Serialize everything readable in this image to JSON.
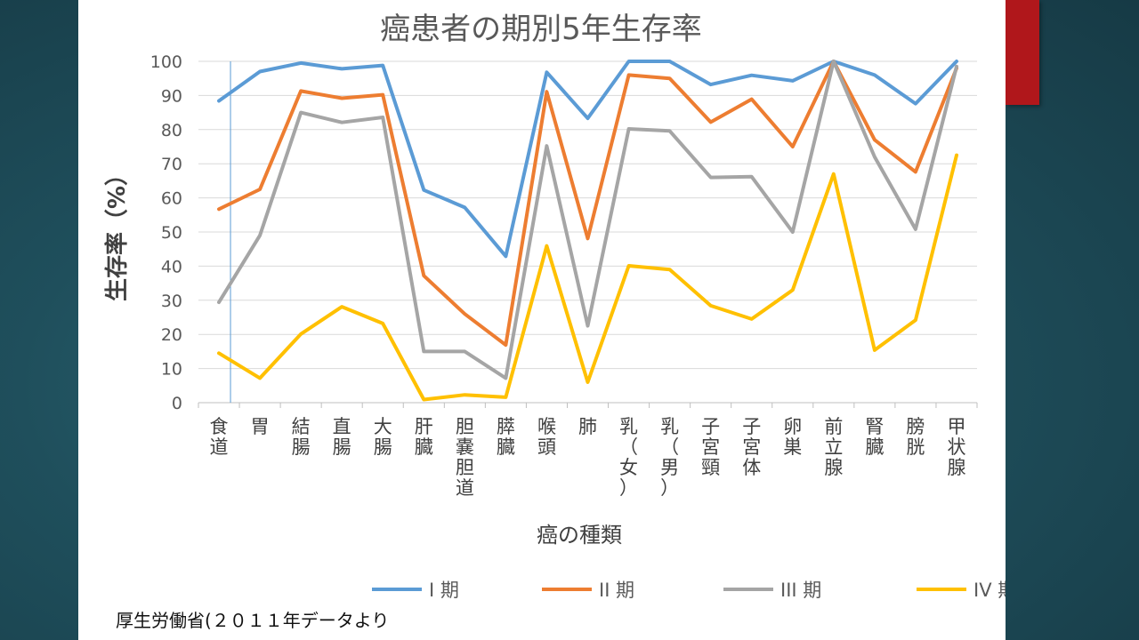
{
  "slide": {
    "source_note": "厚生労働省(２０１１年データより"
  },
  "chart_data": {
    "type": "line",
    "title": "癌患者の期別5年生存率",
    "xlabel": "癌の種類",
    "ylabel": "生存率（%）",
    "ylim": [
      0,
      100
    ],
    "yticks": [
      0,
      10,
      20,
      30,
      40,
      50,
      60,
      70,
      80,
      90,
      100
    ],
    "grid": true,
    "legend_position": "bottom",
    "categories": [
      "食道",
      "胃",
      "結腸",
      "直腸",
      "大腸",
      "肝臓",
      "胆嚢胆道",
      "膵臓",
      "喉頭",
      "肺",
      "乳（女）",
      "乳（男）",
      "子宮頸",
      "子宮体",
      "卵巣",
      "前立腺",
      "腎臓",
      "膀胱",
      "甲状腺"
    ],
    "series": [
      {
        "name": "I 期",
        "color": "#5b9bd5",
        "values": [
          88.4,
          97,
          99.5,
          97.8,
          98.8,
          62.3,
          57.2,
          42.9,
          96.8,
          83.3,
          100,
          100,
          93.2,
          95.9,
          94.3,
          100,
          96,
          87.6,
          100
        ]
      },
      {
        "name": "II 期",
        "color": "#ed7d31",
        "values": [
          56.7,
          62.5,
          91.3,
          89.2,
          90.2,
          37.2,
          26,
          16.9,
          91.1,
          48.1,
          96,
          95,
          82.2,
          88.9,
          75,
          100,
          77,
          67.6,
          98
        ]
      },
      {
        "name": "III 期",
        "color": "#a5a5a5",
        "values": [
          29.4,
          49,
          85,
          82.1,
          83.6,
          15,
          15,
          7.2,
          75.2,
          22.5,
          80.2,
          79.6,
          66,
          66.2,
          50,
          100,
          72,
          50.8,
          98.5
        ]
      },
      {
        "name": "IV 期",
        "color": "#ffc000",
        "values": [
          14.5,
          7.2,
          20.1,
          28.1,
          23.2,
          0.9,
          2.3,
          1.6,
          45.9,
          6,
          40.1,
          39,
          28.4,
          24.5,
          33,
          67,
          15.4,
          24.2,
          72.5
        ]
      }
    ]
  }
}
